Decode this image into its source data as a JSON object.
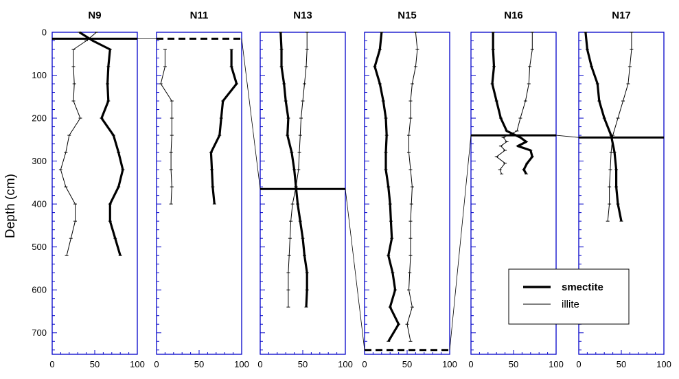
{
  "chart_data": {
    "type": "line",
    "ylabel": "Depth (cm)",
    "ylim": [
      0,
      750
    ],
    "xlim": [
      0,
      100
    ],
    "y_ticks": [
      0,
      100,
      200,
      300,
      400,
      500,
      600,
      700
    ],
    "x_ticks": [
      0,
      50,
      100
    ],
    "legend": {
      "position": "bottom-right",
      "entries": [
        "smectite",
        "illite"
      ]
    },
    "colors": {
      "frame": "#0000c8",
      "series": "#000000"
    },
    "panels": [
      {
        "title": "N9",
        "series": [
          {
            "name": "smectite",
            "depth": [
              0,
              20,
              40,
              80,
              120,
              160,
              200,
              240,
              280,
              320,
              360,
              400,
              440,
              480,
              520
            ],
            "values": [
              32,
              48,
              68,
              66,
              65,
              66,
              58,
              72,
              78,
              83,
              78,
              68,
              68,
              74,
              80
            ]
          },
          {
            "name": "illite",
            "depth": [
              0,
              20,
              40,
              80,
              120,
              160,
              200,
              240,
              280,
              320,
              360,
              400,
              440,
              480,
              520
            ],
            "values": [
              52,
              40,
              25,
              25,
              26,
              25,
              33,
              20,
              16,
              10,
              16,
              27,
              27,
              22,
              17
            ]
          }
        ],
        "boundaries": [
          {
            "depth": 15,
            "style": "solid"
          }
        ]
      },
      {
        "title": "N11",
        "series": [
          {
            "name": "smectite",
            "depth": [
              40,
              80,
              120,
              160,
              200,
              240,
              280,
              320,
              360,
              400
            ],
            "values": [
              88,
              88,
              94,
              78,
              76,
              74,
              64,
              65,
              66,
              68
            ]
          },
          {
            "name": "illite",
            "depth": [
              40,
              80,
              120,
              160,
              200,
              240,
              280,
              320,
              360,
              400
            ],
            "values": [
              10,
              10,
              5,
              18,
              18,
              18,
              17,
              17,
              18,
              17
            ]
          }
        ],
        "boundaries": [
          {
            "depth": 15,
            "style": "dashed"
          }
        ]
      },
      {
        "title": "N13",
        "series": [
          {
            "name": "smectite",
            "depth": [
              0,
              40,
              80,
              120,
              160,
              200,
              240,
              280,
              320,
              360,
              400,
              440,
              480,
              520,
              560,
              600,
              640
            ],
            "values": [
              24,
              25,
              25,
              28,
              30,
              33,
              32,
              37,
              40,
              42,
              44,
              47,
              50,
              52,
              55,
              55,
              54
            ]
          },
          {
            "name": "illite",
            "depth": [
              0,
              40,
              80,
              120,
              160,
              200,
              240,
              280,
              320,
              360,
              400,
              440,
              480,
              520,
              560,
              600,
              640
            ],
            "values": [
              55,
              55,
              54,
              52,
              50,
              48,
              47,
              46,
              45,
              42,
              38,
              36,
              35,
              34,
              33,
              33,
              33
            ]
          }
        ],
        "boundaries": [
          {
            "depth": 365,
            "style": "solid"
          }
        ]
      },
      {
        "title": "N15",
        "series": [
          {
            "name": "smectite",
            "depth": [
              0,
              40,
              80,
              120,
              160,
              200,
              240,
              280,
              320,
              360,
              400,
              440,
              480,
              520,
              560,
              600,
              640,
              680,
              720
            ],
            "values": [
              20,
              18,
              12,
              18,
              22,
              25,
              26,
              25,
              25,
              28,
              30,
              31,
              32,
              28,
              33,
              36,
              30,
              40,
              28
            ]
          },
          {
            "name": "illite",
            "depth": [
              0,
              40,
              80,
              120,
              160,
              200,
              240,
              280,
              320,
              360,
              400,
              440,
              480,
              520,
              560,
              600,
              640,
              680,
              720
            ],
            "values": [
              60,
              62,
              60,
              56,
              54,
              54,
              52,
              52,
              54,
              56,
              55,
              54,
              54,
              54,
              53,
              52,
              56,
              50,
              54
            ]
          }
        ],
        "boundaries": [
          {
            "depth": 740,
            "style": "dashed"
          }
        ]
      },
      {
        "title": "N16",
        "series": [
          {
            "name": "smectite",
            "depth": [
              0,
              40,
              80,
              120,
              160,
              200,
              230,
              245,
              255,
              265,
              275,
              290,
              305,
              320,
              330
            ],
            "values": [
              26,
              26,
              27,
              25,
              30,
              35,
              42,
              58,
              65,
              55,
              70,
              72,
              66,
              62,
              65
            ]
          },
          {
            "name": "illite",
            "depth": [
              0,
              40,
              80,
              120,
              160,
              200,
              230,
              245,
              255,
              265,
              275,
              290,
              305,
              320,
              330
            ],
            "values": [
              72,
              72,
              69,
              68,
              64,
              58,
              54,
              38,
              42,
              35,
              40,
              30,
              40,
              34,
              36
            ]
          }
        ],
        "boundaries": [
          {
            "depth": 240,
            "style": "solid"
          }
        ]
      },
      {
        "title": "N17",
        "series": [
          {
            "name": "smectite",
            "depth": [
              0,
              40,
              80,
              120,
              160,
              200,
              240,
              280,
              320,
              360,
              400,
              440
            ],
            "values": [
              8,
              10,
              15,
              22,
              24,
              30,
              38,
              42,
              44,
              44,
              46,
              50
            ]
          },
          {
            "name": "illite",
            "depth": [
              0,
              40,
              80,
              120,
              160,
              200,
              240,
              280,
              320,
              360,
              400,
              440
            ],
            "values": [
              62,
              62,
              60,
              58,
              52,
              46,
              40,
              38,
              37,
              36,
              36,
              34
            ]
          }
        ],
        "boundaries": [
          {
            "depth": 245,
            "style": "solid"
          }
        ]
      }
    ],
    "connectors": [
      {
        "from_panel": 0,
        "to_panel": 1,
        "from_depth": 15,
        "to_depth": 15
      },
      {
        "from_panel": 1,
        "to_panel": 2,
        "from_depth": 15,
        "to_depth": 365
      },
      {
        "from_panel": 2,
        "to_panel": 3,
        "from_depth": 365,
        "to_depth": 740
      },
      {
        "from_panel": 3,
        "to_panel": 4,
        "from_depth": 740,
        "to_depth": 240
      },
      {
        "from_panel": 4,
        "to_panel": 5,
        "from_depth": 240,
        "to_depth": 245
      }
    ]
  }
}
